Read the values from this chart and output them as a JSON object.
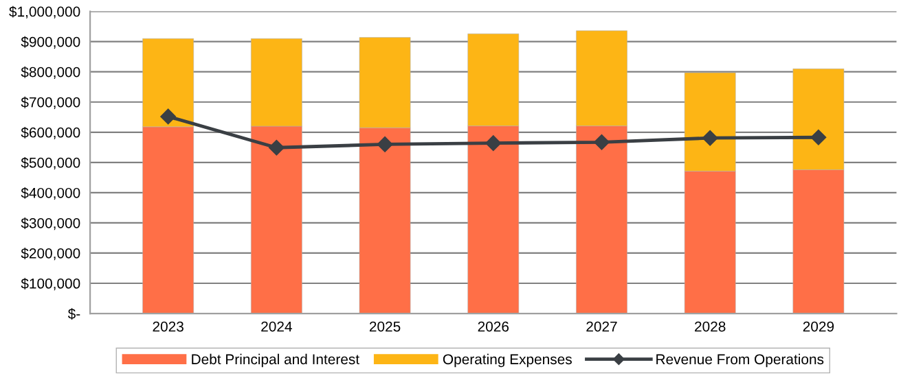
{
  "chart_data": {
    "type": "bar",
    "stacked": true,
    "categories": [
      "2023",
      "2024",
      "2025",
      "2026",
      "2027",
      "2028",
      "2029"
    ],
    "series": [
      {
        "name": "Debt Principal and Interest",
        "color": "#ff6f47",
        "values": [
          618000,
          620000,
          615000,
          621000,
          621000,
          471000,
          476000
        ]
      },
      {
        "name": "Operating Expenses",
        "color": "#fdb515",
        "values": [
          292000,
          290000,
          299000,
          305000,
          315000,
          326000,
          334000
        ]
      },
      {
        "name": "Revenue From Operations",
        "type": "line",
        "color": "#3a3f44",
        "marker": "diamond",
        "line_style": "solid",
        "values": [
          652000,
          549000,
          560000,
          564000,
          567000,
          581000,
          583000
        ]
      }
    ],
    "ylim": [
      0,
      1000000
    ],
    "yticks": [
      {
        "value": 0,
        "label": "$-"
      },
      {
        "value": 100000,
        "label": "$100,000"
      },
      {
        "value": 200000,
        "label": "$200,000"
      },
      {
        "value": 300000,
        "label": "$300,000"
      },
      {
        "value": 400000,
        "label": "$400,000"
      },
      {
        "value": 500000,
        "label": "$500,000"
      },
      {
        "value": 600000,
        "label": "$600,000"
      },
      {
        "value": 700000,
        "label": "$700,000"
      },
      {
        "value": 800000,
        "label": "$800,000"
      },
      {
        "value": 900000,
        "label": "$900,000"
      },
      {
        "value": 1000000,
        "label": "$1,000,000"
      }
    ],
    "grid": "y",
    "legend": "bottom"
  }
}
